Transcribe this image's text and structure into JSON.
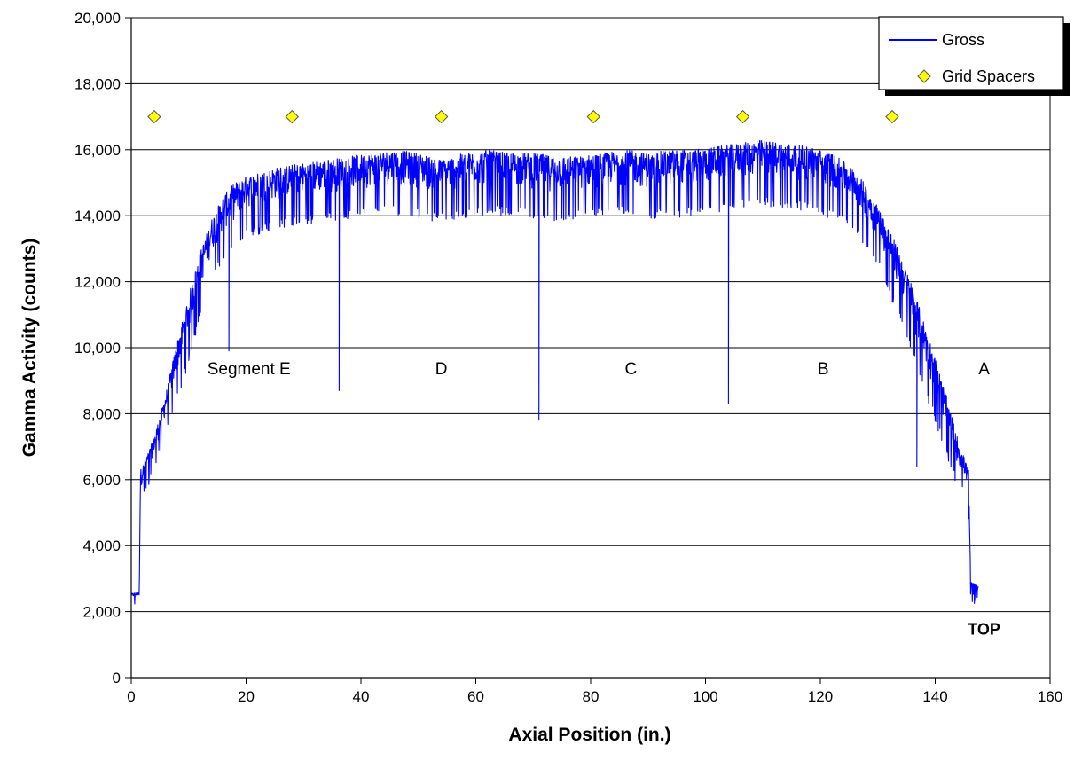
{
  "chart_data": {
    "type": "line",
    "title": "",
    "xlabel": "Axial Position (in.)",
    "ylabel": "Gamma Activity (counts)",
    "xlim": [
      0,
      160
    ],
    "ylim": [
      0,
      20000
    ],
    "xticks": [
      0,
      20,
      40,
      60,
      80,
      100,
      120,
      140,
      160
    ],
    "yticks": [
      0,
      2000,
      4000,
      6000,
      8000,
      10000,
      12000,
      14000,
      16000,
      18000,
      20000
    ],
    "xtick_labels": [
      "0",
      "20",
      "40",
      "60",
      "80",
      "100",
      "120",
      "140",
      "160"
    ],
    "ytick_labels": [
      "0",
      "2,000",
      "4,000",
      "6,000",
      "8,000",
      "10,000",
      "12,000",
      "14,000",
      "16,000",
      "18,000",
      "20,000"
    ],
    "grid": "horizontal major gridlines",
    "legend_position": "top-right",
    "series": [
      {
        "name": "Gross",
        "kind": "line",
        "color": "#0000ff",
        "x": [
          0.0,
          1.4,
          1.6,
          2.2,
          4.0,
          6.0,
          8.0,
          10.0,
          12.0,
          14.0,
          16.0,
          18.0,
          20.0,
          22.0,
          24.0,
          26.0,
          30.0,
          34.0,
          38.0,
          42.0,
          46.0,
          50.0,
          54.0,
          58.0,
          62.0,
          66.0,
          70.0,
          74.0,
          78.0,
          82.0,
          86.0,
          90.0,
          94.0,
          98.0,
          102.0,
          106.0,
          110.0,
          114.0,
          118.0,
          122.0,
          126.0,
          128.0,
          130.0,
          132.0,
          134.0,
          136.0,
          138.0,
          140.0,
          142.0,
          144.0,
          145.8,
          146.2,
          147.5
        ],
        "envelope_low": [
          2350,
          2400,
          5400,
          5800,
          6500,
          7600,
          8700,
          9800,
          11100,
          12300,
          12900,
          13200,
          13600,
          13700,
          13800,
          13900,
          14000,
          14100,
          14200,
          14300,
          14300,
          14200,
          14100,
          14200,
          14300,
          14300,
          14200,
          14100,
          14200,
          14300,
          14300,
          14200,
          14200,
          14300,
          14400,
          14500,
          14600,
          14500,
          14400,
          14200,
          13800,
          13300,
          12700,
          11900,
          11000,
          10000,
          9000,
          8000,
          7000,
          6000,
          5500,
          2500,
          2600
        ],
        "envelope_high": [
          2550,
          2600,
          6300,
          6500,
          7300,
          8600,
          10200,
          11600,
          12900,
          13900,
          14600,
          15000,
          15200,
          15300,
          15400,
          15500,
          15600,
          15700,
          15800,
          15900,
          16000,
          15900,
          15700,
          15900,
          16000,
          15900,
          15900,
          15800,
          15800,
          15900,
          16000,
          15900,
          16000,
          16000,
          16100,
          16200,
          16300,
          16200,
          16100,
          15900,
          15400,
          14900,
          14300,
          13600,
          12800,
          11900,
          10800,
          9700,
          8500,
          7200,
          6300,
          2900,
          2800
        ],
        "dips": [
          {
            "x": 17.0,
            "y": 9900
          },
          {
            "x": 36.2,
            "y": 8700
          },
          {
            "x": 71.0,
            "y": 7800
          },
          {
            "x": 104.0,
            "y": 8300
          },
          {
            "x": 136.8,
            "y": 6400
          }
        ]
      },
      {
        "name": "Grid Spacers",
        "kind": "scatter",
        "marker": "diamond",
        "color": "#ffff00",
        "x": [
          4.0,
          28.0,
          54.0,
          80.5,
          106.5,
          132.5
        ],
        "y": [
          17000,
          17000,
          17000,
          17000,
          17000,
          17000
        ]
      }
    ],
    "annotations": [
      {
        "text": "Segment E",
        "x": 20.5,
        "y": 9200
      },
      {
        "text": "D",
        "x": 54.0,
        "y": 9200
      },
      {
        "text": "C",
        "x": 87.0,
        "y": 9200
      },
      {
        "text": "B",
        "x": 120.5,
        "y": 9200
      },
      {
        "text": "A",
        "x": 148.5,
        "y": 9200
      },
      {
        "text": "TOP",
        "x": 148.5,
        "y": 1300,
        "bold": true
      }
    ]
  },
  "legend": {
    "items": [
      {
        "label": "Gross",
        "symbol": "line",
        "color": "#0000ff"
      },
      {
        "label": "Grid Spacers",
        "symbol": "diamond",
        "color": "#ffff00"
      }
    ]
  }
}
